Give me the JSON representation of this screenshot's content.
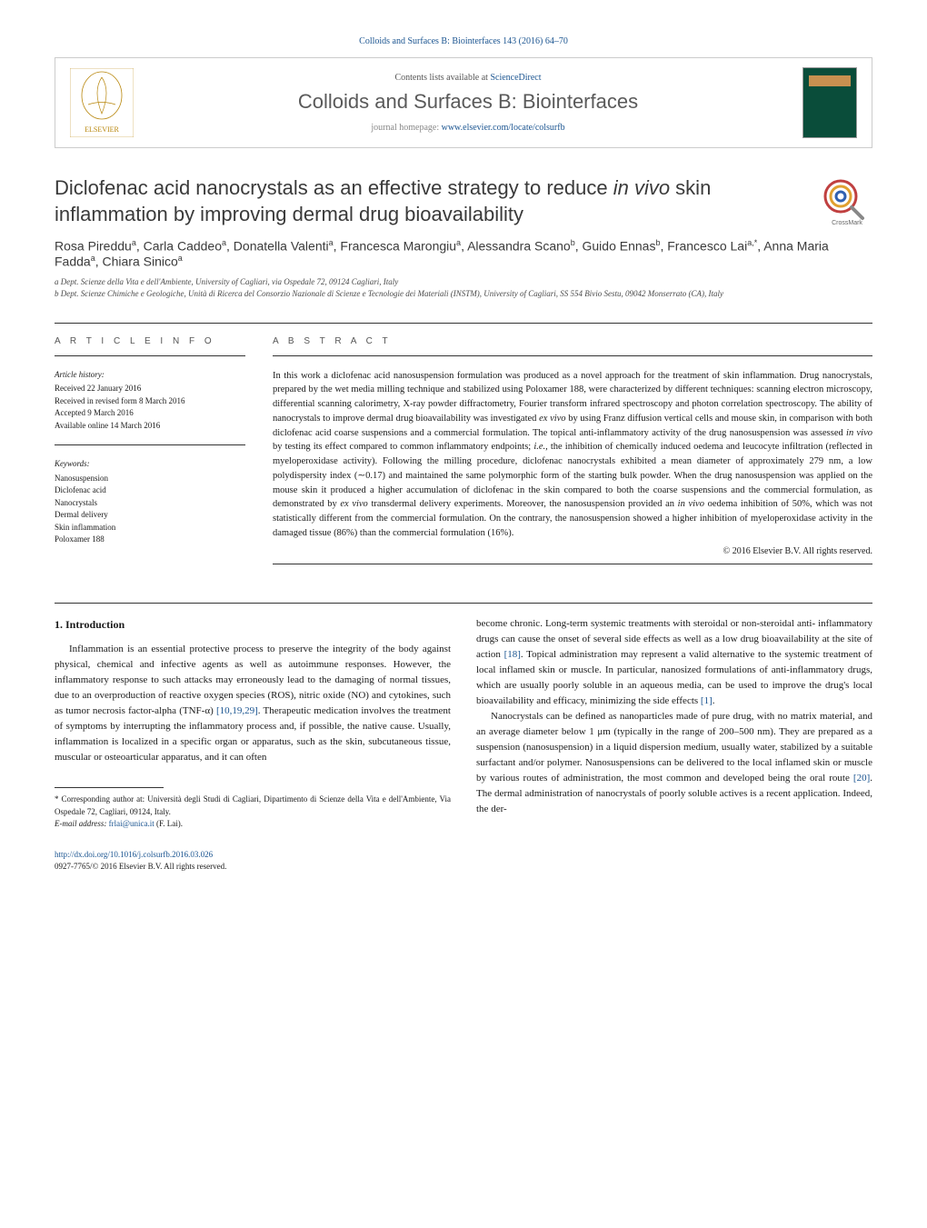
{
  "header_link": "Colloids and Surfaces B: Biointerfaces 143 (2016) 64–70",
  "contents_prefix": "Contents lists available at ",
  "contents_link": "ScienceDirect",
  "journal_title": "Colloids and Surfaces B: Biointerfaces",
  "homepage_prefix": "journal homepage: ",
  "homepage_url": "www.elsevier.com/locate/colsurfb",
  "crossmark_label": "CrossMark",
  "article": {
    "title_pre": "Diclofenac acid nanocrystals as an effective strategy to reduce ",
    "title_italic": "in vivo",
    "title_post": " skin inflammation by improving dermal drug bioavailability",
    "authors_html": "Rosa Pireddu<sup>a</sup>, Carla Caddeo<sup>a</sup>, Donatella Valenti<sup>a</sup>, Francesca Marongiu<sup>a</sup>, Alessandra Scano<sup>b</sup>, Guido Ennas<sup>b</sup>, Francesco Lai<sup>a,*</sup>, Anna Maria Fadda<sup>a</sup>, Chiara Sinico<sup>a</sup>",
    "affil_a": "a Dept. Scienze della Vita e dell'Ambiente, University of Cagliari, via Ospedale 72, 09124 Cagliari, Italy",
    "affil_b": "b Dept. Scienze Chimiche e Geologiche, Unità di Ricerca del Consorzio Nazionale di Scienze e Tecnologie dei Materiali (INSTM), University of Cagliari, SS 554 Bivio Sestu, 09042 Monserrato (CA), Italy"
  },
  "info": {
    "label": "A R T I C L E   I N F O",
    "history_head": "Article history:",
    "received": "Received 22 January 2016",
    "revised": "Received in revised form 8 March 2016",
    "accepted": "Accepted 9 March 2016",
    "online": "Available online 14 March 2016",
    "kw_head": "Keywords:",
    "kw": [
      "Nanosuspension",
      "Diclofenac acid",
      "Nanocrystals",
      "Dermal delivery",
      "Skin inflammation",
      "Poloxamer 188"
    ]
  },
  "abstract": {
    "label": "A B S T R A C T",
    "text_parts": [
      "In this work a diclofenac acid nanosuspension formulation was produced as a novel approach for the treatment of skin inflammation. Drug nanocrystals, prepared by the wet media milling technique and stabilized using Poloxamer 188, were characterized by different techniques: scanning electron microscopy, differential scanning calorimetry, X-ray powder diffractometry, Fourier transform infrared spectroscopy and photon correlation spectroscopy. The ability of nanocrystals to improve dermal drug bioavailability was investigated ",
      "ex vivo",
      " by using Franz diffusion vertical cells and mouse skin, in comparison with both diclofenac acid coarse suspensions and a commercial formulation. The topical anti-inflammatory activity of the drug nanosuspension was assessed ",
      "in vivo",
      " by testing its effect compared to common inflammatory endpoints; ",
      "i.e.",
      ", the inhibition of chemically induced oedema and leucocyte infiltration (reflected in myeloperoxidase activity). Following the milling procedure, diclofenac nanocrystals exhibited a mean diameter of approximately 279 nm, a low polydispersity index (∼0.17) and maintained the same polymorphic form of the starting bulk powder. When the drug nanosuspension was applied on the mouse skin it produced a higher accumulation of diclofenac in the skin compared to both the coarse suspensions and the commercial formulation, as demonstrated by ",
      "ex vivo",
      " transdermal delivery experiments. Moreover, the nanosuspension provided an ",
      "in vivo",
      " oedema inhibition of 50%, which was not statistically different from the commercial formulation. On the contrary, the nanosuspension showed a higher inhibition of myeloperoxidase activity in the damaged tissue (86%) than the commercial formulation (16%)."
    ],
    "copyright": "© 2016 Elsevier B.V. All rights reserved."
  },
  "body": {
    "sec1_head": "1. Introduction",
    "col1_p1_pre": "Inflammation is an essential protective process to preserve the integrity of the body against physical, chemical and infective agents as well as autoimmune responses. However, the inflammatory response to such attacks may erroneously lead to the damaging of normal tissues, due to an overproduction of reactive oxygen species (ROS), nitric oxide (NO) and cytokines, such as tumor necrosis factor-alpha (TNF-α) ",
    "cite1": "[10,19,29]",
    "col1_p1_post": ". Therapeutic medication involves the treatment of symptoms by interrupting the inflammatory process and, if possible, the native cause. Usually, inflammation is localized in a specific organ or apparatus, such as the skin, subcutaneous tissue, muscular or osteoarticular apparatus, and it can often",
    "col2_p1_pre": "become chronic. Long-term systemic treatments with steroidal or non-steroidal anti- inflammatory drugs can cause the onset of several side effects as well as a low drug bioavailability at the site of action ",
    "cite2": "[18]",
    "col2_p1_mid": ". Topical administration may represent a valid alternative to the systemic treatment of local inflamed skin or muscle. In particular, nanosized formulations of anti-inflammatory drugs, which are usually poorly soluble in an aqueous media, can be used to improve the drug's local bioavailability and efficacy, minimizing the side effects ",
    "cite3": "[1]",
    "col2_p1_post": ".",
    "col2_p2_pre": "Nanocrystals can be defined as nanoparticles made of pure drug, with no matrix material, and an average diameter below 1 μm (typically in the range of 200–500 nm). They are prepared as a suspension (nanosuspension) in a liquid dispersion medium, usually water, stabilized by a suitable surfactant and/or polymer. Nanosuspensions can be delivered to the local inflamed skin or muscle by various routes of administration, the most common and developed being the oral route ",
    "cite4": "[20]",
    "col2_p2_post": ". The dermal administration of nanocrystals of poorly soluble actives is a recent application. Indeed, the der-"
  },
  "corresp": {
    "star": "* Corresponding author at: Università degli Studi di Cagliari, Dipartimento di Scienze della Vita e dell'Ambiente, Via Ospedale 72, Cagliari, 09124, Italy.",
    "email_label": "E-mail address: ",
    "email": "frlai@unica.it",
    "email_post": " (F. Lai)."
  },
  "footer": {
    "doi": "http://dx.doi.org/10.1016/j.colsurfb.2016.03.026",
    "issn": "0927-7765/© 2016 Elsevier B.V. All rights reserved."
  },
  "colors": {
    "link": "#1a5490",
    "text": "#1a1a1a",
    "muted": "#5a5a5a"
  }
}
